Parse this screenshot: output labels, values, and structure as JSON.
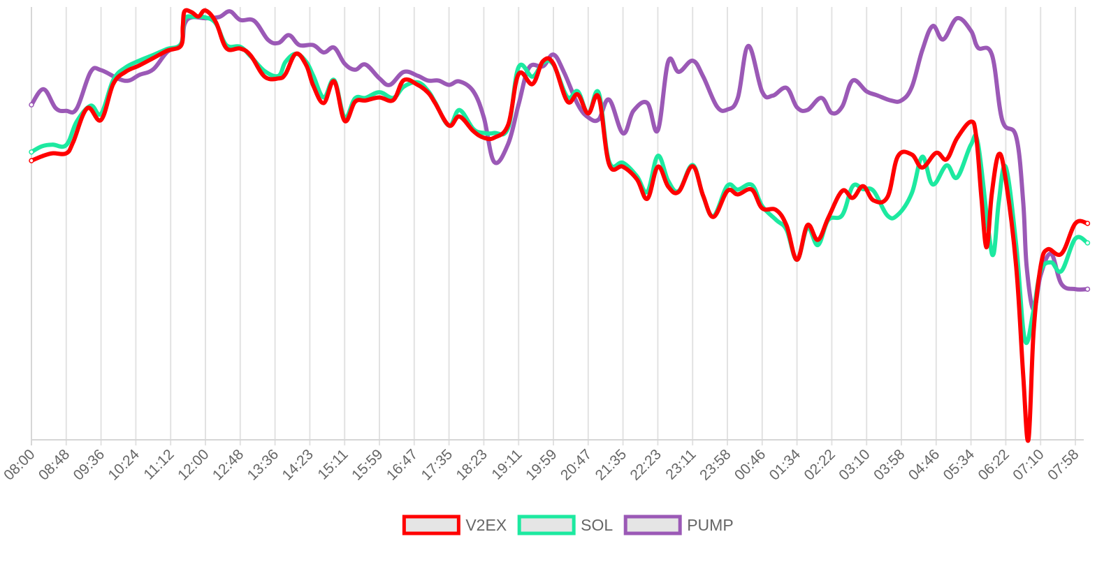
{
  "chart_data": {
    "type": "line",
    "title": "",
    "xlabel": "",
    "ylabel": "",
    "grid": "vertical",
    "legend_position": "bottom-center",
    "ylim": [
      0,
      100
    ],
    "categories": [
      "08:00",
      "08:48",
      "09:36",
      "10:24",
      "11:12",
      "12:00",
      "12:48",
      "13:36",
      "14:23",
      "15:11",
      "15:59",
      "16:47",
      "17:35",
      "18:23",
      "19:11",
      "19:59",
      "20:47",
      "21:35",
      "22:23",
      "23:11",
      "23:58",
      "00:46",
      "01:34",
      "02:22",
      "03:10",
      "03:58",
      "04:46",
      "05:34",
      "06:22",
      "07:10",
      "07:58"
    ],
    "series": [
      {
        "name": "V2EX",
        "color": "#ff0000",
        "values": [
          [
            0,
            64.5
          ],
          [
            0.3,
            65.5
          ],
          [
            0.6,
            66.2
          ],
          [
            1.0,
            66.2
          ],
          [
            1.2,
            68.8
          ],
          [
            1.6,
            76.6
          ],
          [
            2.0,
            73.9
          ],
          [
            2.35,
            82.2
          ],
          [
            2.7,
            85.0
          ],
          [
            3.1,
            86.5
          ],
          [
            3.5,
            88.2
          ],
          [
            3.9,
            89.9
          ],
          [
            4.3,
            91.1
          ],
          [
            4.35,
            95.5
          ],
          [
            4.4,
            99.0
          ],
          [
            4.6,
            98.8
          ],
          [
            4.8,
            97.8
          ],
          [
            5.0,
            99.2
          ],
          [
            5.3,
            96.5
          ],
          [
            5.6,
            90.5
          ],
          [
            6.0,
            90.4
          ],
          [
            6.3,
            88.8
          ],
          [
            6.7,
            83.9
          ],
          [
            7.1,
            83.5
          ],
          [
            7.3,
            84.5
          ],
          [
            7.6,
            89.2
          ],
          [
            7.9,
            86.5
          ],
          [
            8.1,
            81.8
          ],
          [
            8.4,
            77.8
          ],
          [
            8.7,
            82.8
          ],
          [
            9.0,
            73.7
          ],
          [
            9.3,
            78.1
          ],
          [
            9.6,
            78.4
          ],
          [
            10.0,
            79.1
          ],
          [
            10.4,
            78.5
          ],
          [
            10.7,
            83.1
          ],
          [
            11.1,
            82.0
          ],
          [
            11.4,
            80.2
          ],
          [
            11.6,
            77.8
          ],
          [
            12.0,
            72.6
          ],
          [
            12.3,
            74.7
          ],
          [
            12.7,
            71.3
          ],
          [
            13.0,
            69.8
          ],
          [
            13.3,
            69.8
          ],
          [
            13.7,
            72.8
          ],
          [
            14.0,
            84.5
          ],
          [
            14.4,
            82.2
          ],
          [
            14.7,
            87.5
          ],
          [
            15.0,
            86.9
          ],
          [
            15.4,
            78.2
          ],
          [
            15.7,
            79.8
          ],
          [
            16.0,
            75.4
          ],
          [
            16.3,
            79.2
          ],
          [
            16.6,
            63.7
          ],
          [
            17.0,
            63.1
          ],
          [
            17.4,
            60.2
          ],
          [
            17.7,
            55.7
          ],
          [
            18.0,
            63.1
          ],
          [
            18.3,
            58.5
          ],
          [
            18.6,
            57.3
          ],
          [
            19.0,
            63.2
          ],
          [
            19.3,
            56.5
          ],
          [
            19.6,
            51.5
          ],
          [
            20.0,
            57.5
          ],
          [
            20.3,
            56.7
          ],
          [
            20.7,
            57.8
          ],
          [
            21.0,
            53.5
          ],
          [
            21.4,
            53.1
          ],
          [
            21.7,
            49.5
          ],
          [
            22.0,
            41.6
          ],
          [
            22.3,
            49.6
          ],
          [
            22.6,
            46.2
          ],
          [
            22.9,
            51.3
          ],
          [
            23.3,
            57.5
          ],
          [
            23.6,
            55.9
          ],
          [
            23.9,
            58.6
          ],
          [
            24.2,
            55.3
          ],
          [
            24.6,
            56.1
          ],
          [
            24.9,
            65.5
          ],
          [
            25.3,
            65.9
          ],
          [
            25.6,
            62.9
          ],
          [
            26.0,
            66.3
          ],
          [
            26.3,
            64.8
          ],
          [
            26.6,
            69.7
          ],
          [
            27.0,
            73.5
          ],
          [
            27.15,
            70.0
          ],
          [
            27.3,
            56.0
          ],
          [
            27.45,
            44.5
          ],
          [
            27.6,
            57.0
          ],
          [
            27.8,
            66.0
          ],
          [
            28.0,
            60.0
          ],
          [
            28.3,
            40.0
          ],
          [
            28.5,
            15.0
          ],
          [
            28.65,
            0.0
          ],
          [
            28.8,
            25.0
          ],
          [
            29.0,
            40.0
          ],
          [
            29.2,
            44.0
          ],
          [
            29.6,
            43.0
          ],
          [
            30.0,
            50.0
          ],
          [
            30.35,
            50.0
          ]
        ]
      },
      {
        "name": "SOL",
        "color": "#1de9a0",
        "values": [
          [
            0,
            66.5
          ],
          [
            0.3,
            67.8
          ],
          [
            0.6,
            68.2
          ],
          [
            1.0,
            68.1
          ],
          [
            1.3,
            73.5
          ],
          [
            1.7,
            77.2
          ],
          [
            2.0,
            75.3
          ],
          [
            2.35,
            83.1
          ],
          [
            2.7,
            86.0
          ],
          [
            3.1,
            87.6
          ],
          [
            3.5,
            88.9
          ],
          [
            3.9,
            90.3
          ],
          [
            4.3,
            91.5
          ],
          [
            4.4,
            97.2
          ],
          [
            4.7,
            97.7
          ],
          [
            5.0,
            97.6
          ],
          [
            5.3,
            96.2
          ],
          [
            5.6,
            91.2
          ],
          [
            6.0,
            90.8
          ],
          [
            6.3,
            88.6
          ],
          [
            6.7,
            85.2
          ],
          [
            7.1,
            84.1
          ],
          [
            7.3,
            87.3
          ],
          [
            7.6,
            89.2
          ],
          [
            7.9,
            87.3
          ],
          [
            8.1,
            84.1
          ],
          [
            8.4,
            79.1
          ],
          [
            8.7,
            83.1
          ],
          [
            9.0,
            74.5
          ],
          [
            9.3,
            78.9
          ],
          [
            9.6,
            79.0
          ],
          [
            10.0,
            80.3
          ],
          [
            10.4,
            79.0
          ],
          [
            10.7,
            81.6
          ],
          [
            11.1,
            82.6
          ],
          [
            11.4,
            80.6
          ],
          [
            11.6,
            78.0
          ],
          [
            12.0,
            72.6
          ],
          [
            12.3,
            76.2
          ],
          [
            12.7,
            71.8
          ],
          [
            13.0,
            70.9
          ],
          [
            13.3,
            70.9
          ],
          [
            13.7,
            72.1
          ],
          [
            14.0,
            86.1
          ],
          [
            14.4,
            83.9
          ],
          [
            14.7,
            87.1
          ],
          [
            15.0,
            86.7
          ],
          [
            15.4,
            79.2
          ],
          [
            15.7,
            80.5
          ],
          [
            16.0,
            75.4
          ],
          [
            16.3,
            80.2
          ],
          [
            16.6,
            64.3
          ],
          [
            17.0,
            64.0
          ],
          [
            17.4,
            60.9
          ],
          [
            17.7,
            57.3
          ],
          [
            18.0,
            65.6
          ],
          [
            18.3,
            59.8
          ],
          [
            18.6,
            57.5
          ],
          [
            19.0,
            63.5
          ],
          [
            19.3,
            56.4
          ],
          [
            19.6,
            51.7
          ],
          [
            20.0,
            58.7
          ],
          [
            20.3,
            57.8
          ],
          [
            20.7,
            58.9
          ],
          [
            21.0,
            54.0
          ],
          [
            21.4,
            50.8
          ],
          [
            21.7,
            48.5
          ],
          [
            22.0,
            41.6
          ],
          [
            22.3,
            49.0
          ],
          [
            22.6,
            45.0
          ],
          [
            22.9,
            50.8
          ],
          [
            23.3,
            51.9
          ],
          [
            23.6,
            58.6
          ],
          [
            23.9,
            57.9
          ],
          [
            24.2,
            57.5
          ],
          [
            24.6,
            51.8
          ],
          [
            24.9,
            52.0
          ],
          [
            25.3,
            57.0
          ],
          [
            25.6,
            65.4
          ],
          [
            25.9,
            59.0
          ],
          [
            26.3,
            63.4
          ],
          [
            26.6,
            60.6
          ],
          [
            27.0,
            68.2
          ],
          [
            27.2,
            68.5
          ],
          [
            27.5,
            48.5
          ],
          [
            27.65,
            43.0
          ],
          [
            27.8,
            55.0
          ],
          [
            28.0,
            63.0
          ],
          [
            28.3,
            45.0
          ],
          [
            28.55,
            23.0
          ],
          [
            28.8,
            30.0
          ],
          [
            29.0,
            39.0
          ],
          [
            29.3,
            41.0
          ],
          [
            29.6,
            39.0
          ],
          [
            30.0,
            46.5
          ],
          [
            30.35,
            45.5
          ]
        ]
      },
      {
        "name": "PUMP",
        "color": "#9b59b6",
        "values": [
          [
            0,
            77.4
          ],
          [
            0.35,
            81.0
          ],
          [
            0.7,
            76.6
          ],
          [
            1.0,
            76.0
          ],
          [
            1.3,
            76.5
          ],
          [
            1.7,
            85.0
          ],
          [
            2.0,
            85.4
          ],
          [
            2.5,
            83.4
          ],
          [
            2.8,
            83.0
          ],
          [
            3.1,
            84.3
          ],
          [
            3.5,
            85.6
          ],
          [
            3.9,
            89.6
          ],
          [
            4.3,
            91.5
          ],
          [
            4.4,
            96.0
          ],
          [
            4.6,
            97.6
          ],
          [
            5.0,
            97.4
          ],
          [
            5.4,
            97.7
          ],
          [
            5.7,
            99.0
          ],
          [
            6.0,
            97.0
          ],
          [
            6.4,
            96.8
          ],
          [
            6.8,
            92.4
          ],
          [
            7.1,
            91.7
          ],
          [
            7.4,
            93.5
          ],
          [
            7.7,
            91.2
          ],
          [
            8.1,
            91.2
          ],
          [
            8.4,
            89.5
          ],
          [
            8.7,
            90.6
          ],
          [
            9.0,
            86.9
          ],
          [
            9.3,
            85.5
          ],
          [
            9.6,
            86.7
          ],
          [
            10.0,
            83.5
          ],
          [
            10.3,
            82.0
          ],
          [
            10.7,
            85.0
          ],
          [
            11.1,
            84.1
          ],
          [
            11.4,
            83.0
          ],
          [
            11.7,
            83.0
          ],
          [
            12.0,
            82.0
          ],
          [
            12.3,
            82.8
          ],
          [
            12.7,
            80.5
          ],
          [
            13.0,
            74.5
          ],
          [
            13.3,
            64.2
          ],
          [
            13.7,
            68.4
          ],
          [
            14.0,
            77.5
          ],
          [
            14.3,
            86.0
          ],
          [
            14.7,
            86.3
          ],
          [
            15.0,
            89.0
          ],
          [
            15.3,
            85.0
          ],
          [
            15.7,
            77.5
          ],
          [
            16.0,
            74.5
          ],
          [
            16.3,
            74.0
          ],
          [
            16.6,
            78.6
          ],
          [
            17.0,
            70.8
          ],
          [
            17.3,
            76.0
          ],
          [
            17.7,
            77.8
          ],
          [
            18.0,
            71.5
          ],
          [
            18.3,
            87.4
          ],
          [
            18.6,
            85.0
          ],
          [
            19.0,
            87.6
          ],
          [
            19.3,
            84.0
          ],
          [
            19.7,
            77.0
          ],
          [
            20.0,
            76.3
          ],
          [
            20.3,
            79.0
          ],
          [
            20.6,
            91.0
          ],
          [
            21.0,
            80.4
          ],
          [
            21.3,
            79.5
          ],
          [
            21.7,
            81.3
          ],
          [
            22.0,
            76.8
          ],
          [
            22.3,
            76.2
          ],
          [
            22.7,
            79.0
          ],
          [
            23.0,
            75.5
          ],
          [
            23.3,
            77.0
          ],
          [
            23.6,
            83.0
          ],
          [
            24.0,
            80.5
          ],
          [
            24.3,
            79.6
          ],
          [
            24.7,
            78.4
          ],
          [
            25.0,
            78.4
          ],
          [
            25.3,
            81.5
          ],
          [
            25.6,
            90.0
          ],
          [
            25.9,
            95.6
          ],
          [
            26.2,
            92.5
          ],
          [
            26.6,
            97.4
          ],
          [
            27.0,
            94.5
          ],
          [
            27.2,
            90.6
          ],
          [
            27.6,
            89.0
          ],
          [
            27.9,
            73.8
          ],
          [
            28.3,
            70.0
          ],
          [
            28.5,
            55.0
          ],
          [
            28.6,
            40.0
          ],
          [
            28.8,
            30.0
          ],
          [
            29.0,
            38.0
          ],
          [
            29.3,
            43.0
          ],
          [
            29.6,
            36.0
          ],
          [
            30.0,
            34.8
          ],
          [
            30.35,
            34.8
          ]
        ]
      }
    ]
  }
}
